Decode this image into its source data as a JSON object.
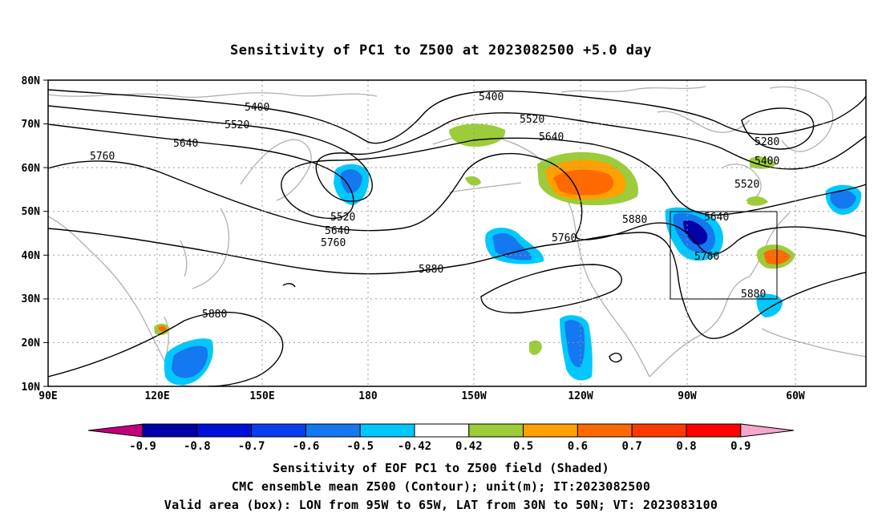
{
  "title": "Sensitivity of PC1 to Z500 at 2023082500 +5.0 day",
  "lat_ticks": [
    "80N",
    "70N",
    "60N",
    "50N",
    "40N",
    "30N",
    "20N",
    "10N"
  ],
  "lon_ticks": [
    "90E",
    "120E",
    "150E",
    "180",
    "150W",
    "120W",
    "90W",
    "60W"
  ],
  "contour_labels": {
    "5400": "5400",
    "5520": "5520",
    "5640": "5640",
    "5760": "5760",
    "5880": "5880",
    "5280": "5280"
  },
  "colorbar": {
    "labels": [
      "-0.9",
      "-0.8",
      "-0.7",
      "-0.6",
      "-0.5",
      "-0.42",
      "0.42",
      "0.5",
      "0.6",
      "0.7",
      "0.8",
      "0.9"
    ],
    "colors": [
      "#c0007a",
      "#0000a8",
      "#0010d8",
      "#0a3cf0",
      "#1478f0",
      "#00c8ff",
      "#ffffff",
      "#9ccc3a",
      "#ffa000",
      "#ff6a00",
      "#ff3a00",
      "#ff0000",
      "#f7a6cc"
    ]
  },
  "captions": {
    "line1": "Sensitivity of EOF PC1 to Z500 field (Shaded)",
    "line2": "CMC ensemble mean Z500 (Contour); unit(m); IT:2023082500",
    "line3": "Valid area (box): LON from 95W to 65W, LAT from 30N to 50N; VT: 2023083100"
  },
  "valid_area": {
    "lon_range": [
      "95W",
      "65W"
    ],
    "lat_range": [
      "30N",
      "50N"
    ]
  }
}
